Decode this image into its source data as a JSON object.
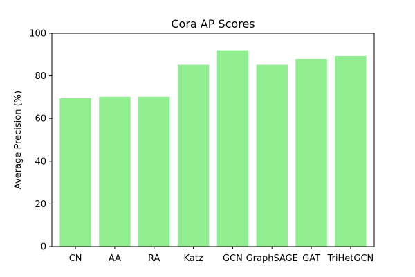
{
  "chart_data": {
    "type": "bar",
    "title": "Cora AP Scores",
    "xlabel": "",
    "ylabel": "Average Precision (%)",
    "categories": [
      "CN",
      "AA",
      "RA",
      "Katz",
      "GCN",
      "GraphSAGE",
      "GAT",
      "TriHetGCN"
    ],
    "values": [
      69.5,
      70.2,
      70.2,
      85.2,
      92.0,
      85.2,
      88.0,
      89.3
    ],
    "ylim": [
      0,
      100
    ],
    "yticks": [
      "0",
      "20",
      "40",
      "60",
      "80",
      "100"
    ],
    "bar_color": "#90ee90",
    "grid": false,
    "legend": "none"
  }
}
